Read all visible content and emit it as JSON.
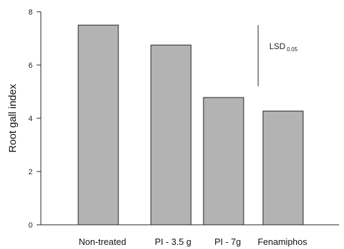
{
  "chart_data": {
    "type": "bar",
    "categories": [
      "Non-treated",
      "PI - 3.5 g",
      "PI - 7g",
      "Fenamiphos"
    ],
    "values": [
      7.5,
      6.75,
      4.78,
      4.27
    ],
    "ylabel": "Root gall index",
    "xlabel": "",
    "ylim": [
      0,
      8
    ],
    "yticks": [
      0,
      2,
      4,
      6,
      8
    ],
    "grid": false,
    "legend": "none",
    "bar_color": "#b3b3b3",
    "bar_stroke": "#222222",
    "annotation": {
      "label": "LSD",
      "subscript": "0.05",
      "y_top": 7.5,
      "y_bottom": 5.2
    }
  }
}
